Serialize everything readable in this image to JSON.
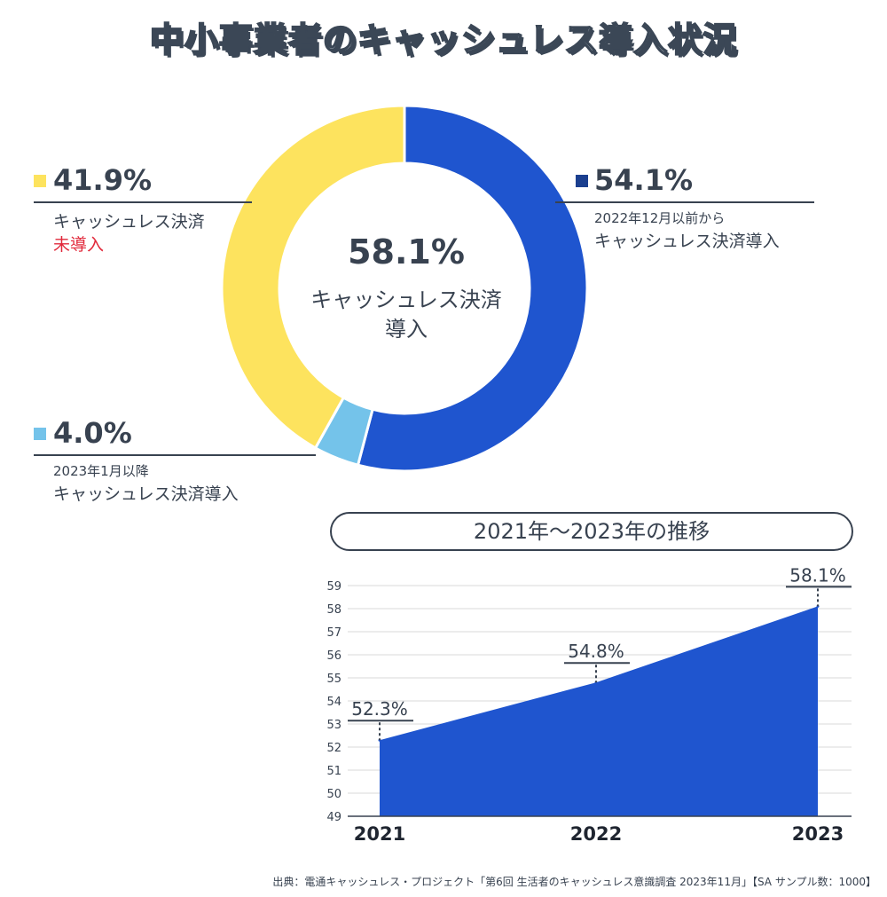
{
  "title": "中小事業者のキャッシュレス導入状況",
  "colors": {
    "yellow": "#fde35e",
    "blue": "#1f55cf",
    "light_blue": "#74c3ea",
    "dark_blue": "#1b3f8f",
    "text": "#384250",
    "grid": "#d9d9d9"
  },
  "donut": {
    "center_value": "58.1%",
    "center_label_line1": "キャッシュレス決済",
    "center_label_line2": "導入",
    "segments": [
      {
        "name": "before",
        "value_label": "54.1%",
        "line1": "2022年12月以前から",
        "line2": "キャッシュレス決済導入"
      },
      {
        "name": "after",
        "value_label": "4.0%",
        "line1": "2023年1月以降",
        "line2": "キャッシュレス決済導入"
      },
      {
        "name": "none",
        "value_label": "41.9%",
        "line1": "キャッシュレス決済",
        "line2": "未導入"
      }
    ]
  },
  "trend_title": "2021年～2023年の推移",
  "source": "出典：電通キャッシュレス・プロジェクト「第6回 生活者のキャッシュレス意識調査 2023年11月」【SA サンプル数：1000】",
  "chart_data": [
    {
      "type": "pie",
      "title": "中小事業者のキャッシュレス導入状況",
      "categories": [
        "2022年12月以前からキャッシュレス決済導入",
        "2023年1月以降キャッシュレス決済導入",
        "キャッシュレス決済未導入"
      ],
      "values": [
        54.1,
        4.0,
        41.9
      ],
      "center_label": "58.1% キャッシュレス決済導入"
    },
    {
      "type": "area",
      "title": "2021年～2023年の推移",
      "x": [
        "2021",
        "2022",
        "2023"
      ],
      "values": [
        52.3,
        54.8,
        58.1
      ],
      "data_labels": [
        "52.3%",
        "54.8%",
        "58.1%"
      ],
      "ylim": [
        49,
        59
      ],
      "yticks": [
        49,
        50,
        51,
        52,
        53,
        54,
        55,
        56,
        57,
        58,
        59
      ],
      "grid": true,
      "xlabel": "",
      "ylabel": ""
    }
  ]
}
